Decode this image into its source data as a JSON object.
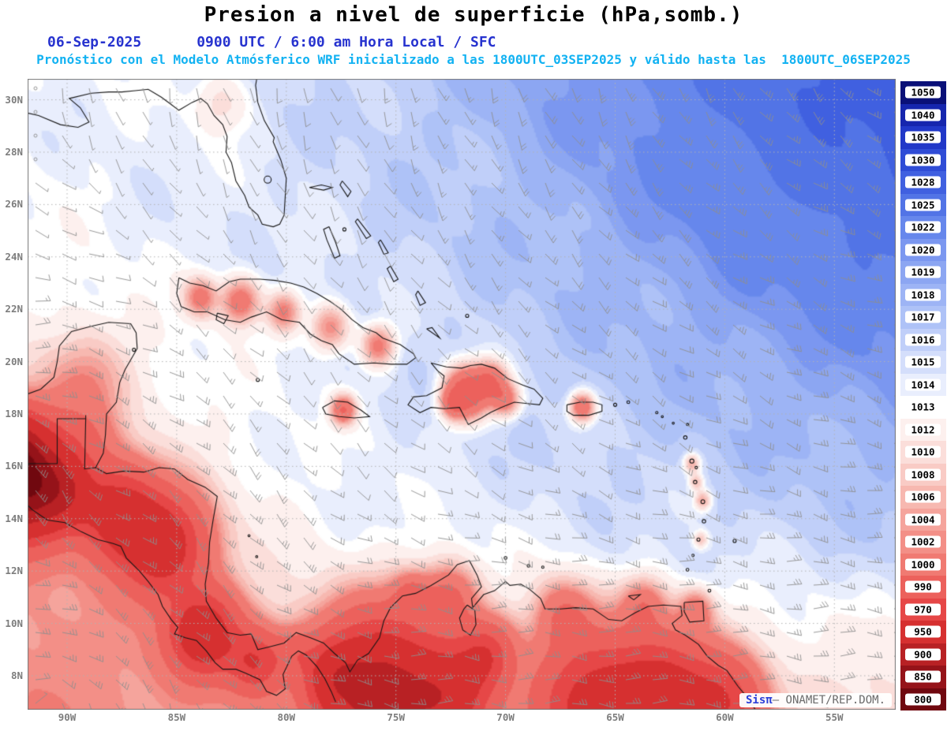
{
  "title": "Presion a nivel de superficie (hPa,somb.)",
  "subtitle": {
    "date": "06-Sep-2025",
    "time": "0900 UTC / 6:00 am Hora Local / SFC",
    "forecast": "Pronóstico con el Modelo Atmósferico WRF inicializado a las 1800UTC_03SEP2025 y válido hasta las  1800UTC_06SEP2025"
  },
  "map": {
    "lat_labels": [
      "30N",
      "28N",
      "26N",
      "24N",
      "22N",
      "20N",
      "18N",
      "16N",
      "14N",
      "12N",
      "10N",
      "8N"
    ],
    "lon_labels": [
      "90W",
      "85W",
      "80W",
      "75W",
      "70W",
      "65W",
      "60W",
      "55W"
    ],
    "units": "hPa"
  },
  "colorbar": {
    "values": [
      1050,
      1040,
      1035,
      1030,
      1028,
      1025,
      1022,
      1020,
      1019,
      1018,
      1017,
      1016,
      1015,
      1014,
      1013,
      1012,
      1010,
      1008,
      1006,
      1004,
      1002,
      1000,
      990,
      970,
      950,
      900,
      850,
      800
    ],
    "colors": [
      "#0a1078",
      "#1626ae",
      "#2138c8",
      "#2f4cd6",
      "#4060e0",
      "#5274e6",
      "#6687ec",
      "#7b97f0",
      "#8ca6f2",
      "#9db4f5",
      "#aec2f7",
      "#c0cff9",
      "#d4defb",
      "#e9eefd",
      "#ffffff",
      "#fdf0ee",
      "#fbdeda",
      "#f9cbc5",
      "#f7b8b0",
      "#f5a49c",
      "#f38f87",
      "#f07a72",
      "#ec615c",
      "#e64747",
      "#d63030",
      "#b82124",
      "#951319",
      "#70080f"
    ]
  },
  "watermark": {
    "brand": "Sisπ",
    "org": "— ONAMET/REP.DOM."
  }
}
